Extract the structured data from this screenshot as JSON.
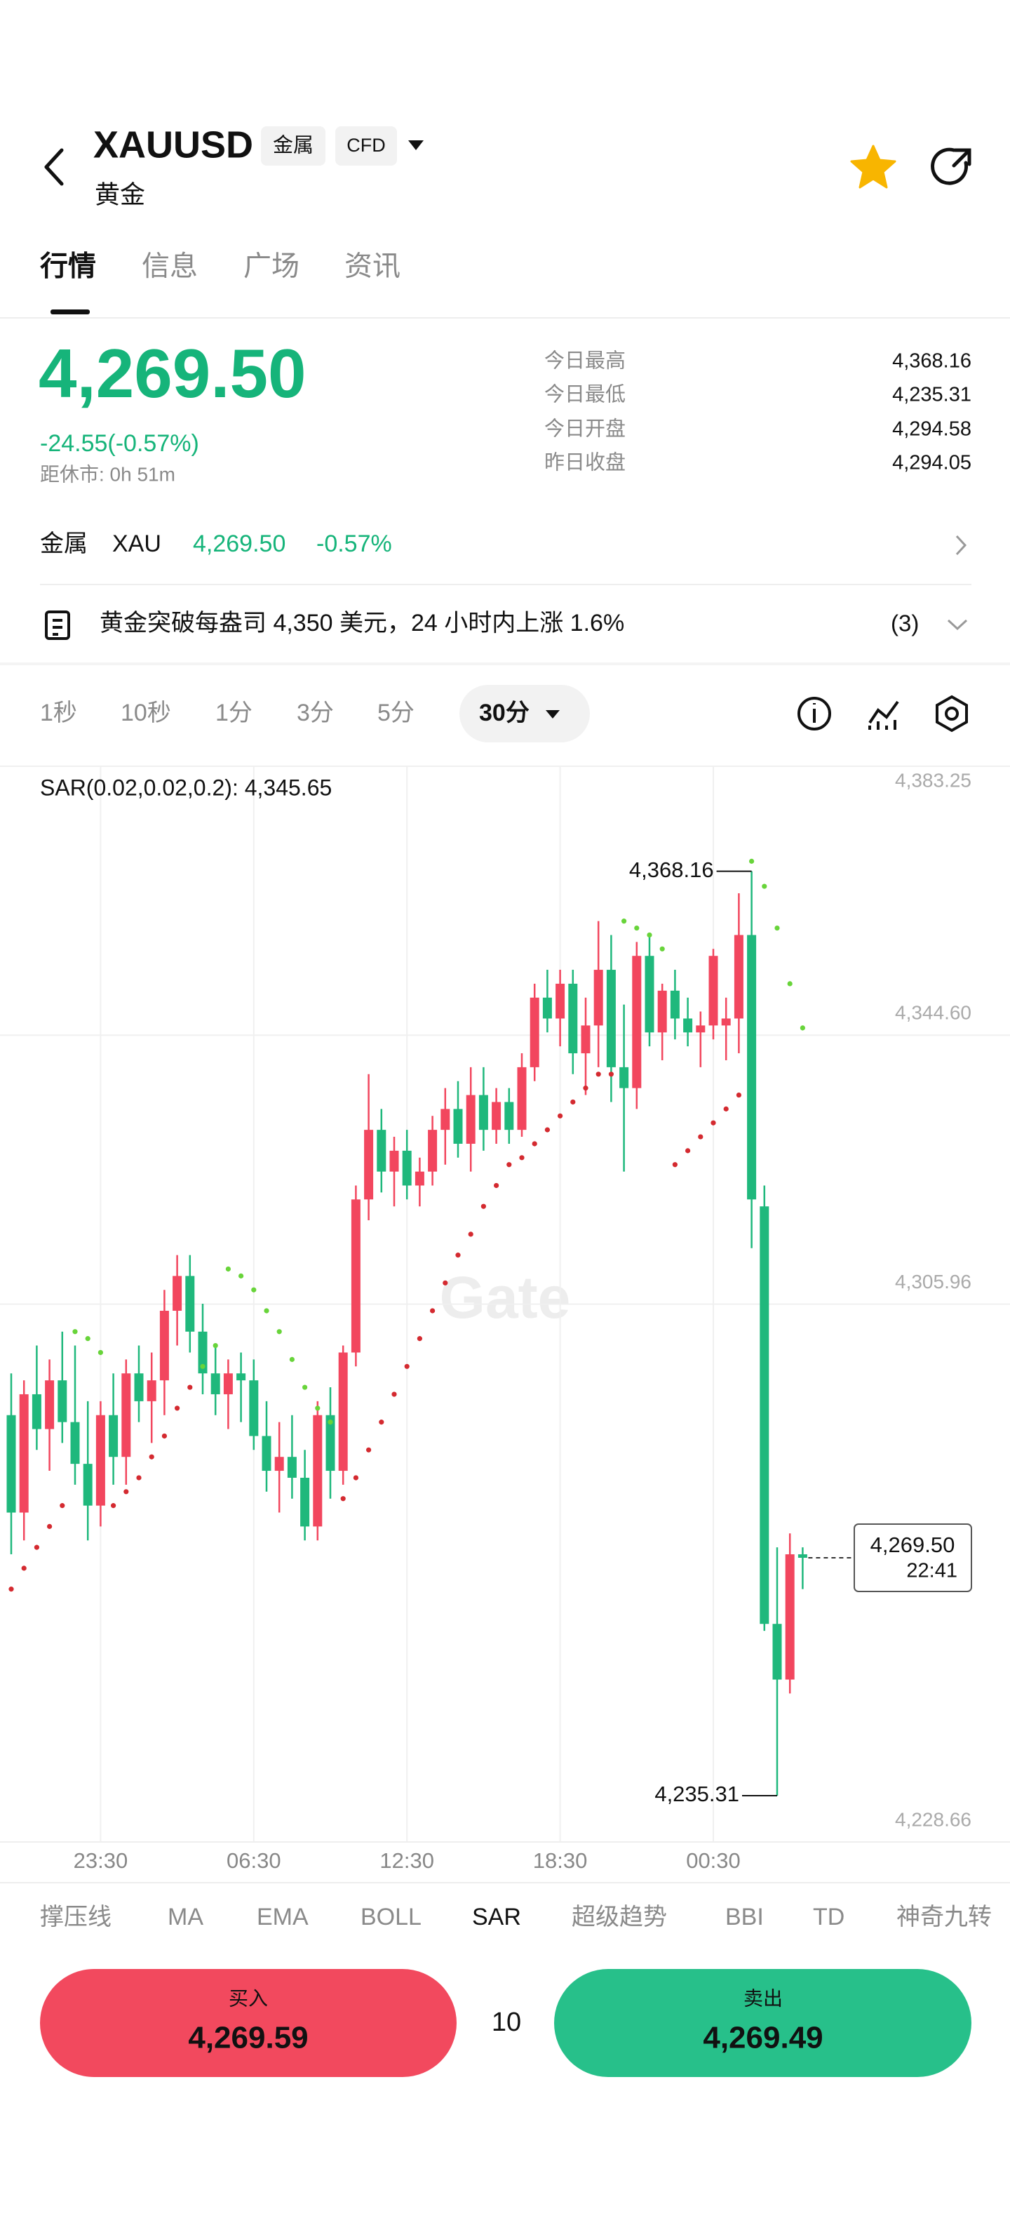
{
  "header": {
    "symbol": "XAUUSD",
    "tags": [
      "金属",
      "CFD"
    ],
    "name": "黄金"
  },
  "tabs": [
    "行情",
    "信息",
    "广场",
    "资讯"
  ],
  "quote": {
    "price": "4,269.50",
    "change": "-24.55(-0.57%)",
    "market_close": "距休市: 0h 51m"
  },
  "stats": [
    {
      "label": "今日最高",
      "value": "4,368.16"
    },
    {
      "label": "今日最低",
      "value": "4,235.31"
    },
    {
      "label": "今日开盘",
      "value": "4,294.58"
    },
    {
      "label": "昨日收盘",
      "value": "4,294.05"
    }
  ],
  "related": {
    "category": "金属",
    "symbol": "XAU",
    "price": "4,269.50",
    "change": "-0.57%"
  },
  "news": {
    "text": "黄金突破每盎司 4,350 美元，24 小时内上涨 1.6%",
    "count": "(3)"
  },
  "intervals": [
    "1秒",
    "10秒",
    "1分",
    "3分",
    "5分",
    "30分"
  ],
  "chart_data": {
    "type": "candlestick",
    "sar_label": "SAR(0.02,0.02,0.2): 4,345.65",
    "watermark": "Gate",
    "categories": [
      null,
      null,
      null,
      null,
      null,
      null,
      null,
      "23:30",
      null,
      null,
      null,
      null,
      null,
      null,
      null,
      null,
      null,
      null,
      null,
      "06:30",
      null,
      null,
      null,
      null,
      null,
      null,
      null,
      null,
      null,
      null,
      null,
      "12:30",
      null,
      null,
      null,
      null,
      null,
      null,
      null,
      null,
      null,
      null,
      null,
      "18:30",
      null,
      null,
      null,
      null,
      null,
      null,
      null,
      null,
      null,
      null,
      null,
      "00:30",
      null,
      null,
      null,
      null,
      null,
      null,
      null
    ],
    "open": [
      4290,
      4276,
      4293,
      4288,
      4295,
      4289,
      4283,
      4277,
      4290,
      4284,
      4296,
      4292,
      4295,
      4305,
      4310,
      4302,
      4296,
      4293,
      4296,
      4295,
      4287,
      4282,
      4284,
      4281,
      4274,
      4290,
      4282,
      4299,
      4321,
      4331,
      4325,
      4328,
      4323,
      4325,
      4331,
      4334,
      4329,
      4336,
      4331,
      4335,
      4331,
      4340,
      4350,
      4347,
      4352,
      4342,
      4346,
      4354,
      4340,
      4337,
      4356,
      4345,
      4351,
      4347,
      4345,
      4346,
      4346,
      4347,
      4359,
      4320,
      4260,
      4252,
      4270
    ],
    "high": [
      4296,
      4295,
      4300,
      4298,
      4302,
      4300,
      4292,
      4292,
      4296,
      4298,
      4300,
      4299,
      4308,
      4313,
      4313,
      4306,
      4300,
      4298,
      4299,
      4298,
      4292,
      4289,
      4290,
      4285,
      4292,
      4294,
      4300,
      4323,
      4339,
      4334,
      4330,
      4331,
      4327,
      4333,
      4337,
      4338,
      4340,
      4340,
      4337,
      4337,
      4342,
      4352,
      4354,
      4354,
      4354,
      4350,
      4361,
      4359,
      4349,
      4358,
      4359,
      4352,
      4354,
      4350,
      4348,
      4357,
      4350,
      4365,
      4368.16,
      4323,
      4271,
      4273,
      4271
    ],
    "low": [
      4270,
      4272,
      4285,
      4282,
      4286,
      4280,
      4272,
      4274,
      4280,
      4280,
      4289,
      4286,
      4290,
      4300,
      4299,
      4293,
      4290,
      4288,
      4289,
      4285,
      4279,
      4276,
      4278,
      4272,
      4272,
      4278,
      4280,
      4297,
      4318,
      4322,
      4320,
      4321,
      4320,
      4323,
      4326,
      4327,
      4325,
      4328,
      4329,
      4329,
      4330,
      4338,
      4345,
      4343,
      4339,
      4336,
      4340,
      4335,
      4325,
      4334,
      4343,
      4341,
      4344,
      4343,
      4340,
      4344,
      4341,
      4342,
      4314,
      4259,
      4235.31,
      4250,
      4265
    ],
    "close": [
      4276,
      4293,
      4288,
      4295,
      4289,
      4283,
      4277,
      4290,
      4284,
      4296,
      4292,
      4295,
      4305,
      4310,
      4302,
      4296,
      4293,
      4296,
      4295,
      4287,
      4282,
      4284,
      4281,
      4274,
      4290,
      4282,
      4299,
      4321,
      4331,
      4325,
      4328,
      4323,
      4325,
      4331,
      4334,
      4329,
      4336,
      4331,
      4335,
      4331,
      4340,
      4350,
      4347,
      4352,
      4342,
      4346,
      4354,
      4340,
      4337,
      4356,
      4345,
      4351,
      4347,
      4345,
      4346,
      4356,
      4347,
      4359,
      4321,
      4260,
      4252,
      4270,
      4269.5
    ],
    "up_color": "#f2465e",
    "down_color": "#1fb87c",
    "sar": {
      "values": [
        4265,
        4268,
        4271,
        4274,
        4277,
        4302,
        4301,
        4299,
        4277,
        4279,
        4281,
        4284,
        4287,
        4291,
        4294,
        4297,
        4300,
        4311,
        4310,
        4308,
        4305,
        4302,
        4298,
        4294,
        4291,
        4289,
        4278,
        4281,
        4285,
        4289,
        4293,
        4297,
        4301,
        4305,
        4309,
        4313,
        4316,
        4320,
        4323,
        4326,
        4327,
        4329,
        4331,
        4333,
        4335,
        4337,
        4339,
        4339,
        4361,
        4360,
        4359,
        4357,
        4326,
        4328,
        4330,
        4332,
        4334,
        4336,
        4369.6,
        4366,
        4360,
        4352,
        4345.65
      ],
      "color_above": "#68d43a",
      "color_below": "#d42a30"
    },
    "max_label": {
      "value": 4368.16,
      "label": "4,368.16"
    },
    "min_label": {
      "value": 4235.31,
      "label": "4,235.31"
    },
    "last_price": {
      "value": 4269.5,
      "label": "4,269.50"
    },
    "countdown": "22:41",
    "ylim": [
      4228.66,
      4383.25
    ],
    "yticks": [
      {
        "value": 4383.25,
        "label": "4,383.25"
      },
      {
        "value": 4344.6,
        "label": "4,344.60"
      },
      {
        "value": 4305.96,
        "label": "4,305.96"
      },
      {
        "value": 4228.66,
        "label": "4,228.66"
      }
    ],
    "grid": true
  },
  "indicators": [
    "撑压线",
    "MA",
    "EMA",
    "BOLL",
    "SAR",
    "超级趋势",
    "BBI",
    "TD",
    "神奇九转"
  ],
  "trade": {
    "buy_label": "买入",
    "buy_price": "4,269.59",
    "quantity": "10",
    "sell_label": "卖出",
    "sell_price": "4,269.49"
  }
}
